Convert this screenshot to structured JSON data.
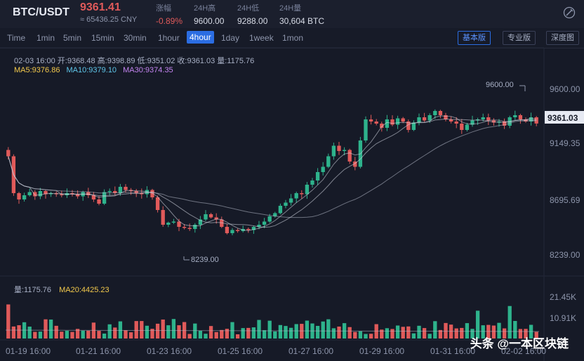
{
  "header": {
    "pair": "BTC/USDT",
    "price": "9361.41",
    "price_cny": "≈ 65436.25 CNY",
    "stats": [
      {
        "label": "涨幅",
        "value": "-0.89%"
      },
      {
        "label": "24H高",
        "value": "9600.00"
      },
      {
        "label": "24H低",
        "value": "9288.00"
      },
      {
        "label": "24H量",
        "value": "30,604 BTC"
      }
    ],
    "settings_icon": "wand-icon"
  },
  "timeframes": [
    "Time",
    "1min",
    "5min",
    "15min",
    "30min",
    "1hour",
    "4hour",
    "1day",
    "1week",
    "1mon"
  ],
  "active_timeframe": "4hour",
  "modes": [
    "基本版",
    "专业版",
    "深度图"
  ],
  "active_mode": "基本版",
  "ohlc": "02-03 16:00  开:9368.48 高:9398.89 低:9351.02 收:9361.03 量:1175.76",
  "ma_line": {
    "ma5": "MA5:9376.86",
    "ma10": "MA10:9379.10",
    "ma30": "MA30:9374.35"
  },
  "volume_line": {
    "vol": "量:1175.76",
    "ma20": "MA20:4425.23"
  },
  "price_axis": [
    "9600.00",
    "9149.35",
    "8695.69",
    "8239.00"
  ],
  "current_price_tag": "9361.03",
  "volume_axis": [
    "21.45K",
    "10.91K"
  ],
  "time_axis": [
    "01-19 16:00",
    "01-21 16:00",
    "01-23 16:00",
    "01-25 16:00",
    "01-27 16:00",
    "01-29 16:00",
    "01-31 16:00",
    "02-02 16:00"
  ],
  "annotations": {
    "high": "9600.00",
    "low": "8239.00"
  },
  "watermark": "头条 @一本区块链",
  "colors": {
    "up": "#2eb38c",
    "down": "#e05a5a",
    "ma5": "#f2c94c",
    "ma10": "#5ec5e8",
    "ma30": "#c384f0",
    "accent": "#2b6de2"
  },
  "chart_data": {
    "type": "candlestick",
    "ylim": [
      8000,
      9800
    ],
    "candle_closes": [
      9050,
      8700,
      8640,
      8680,
      8710,
      8670,
      8720,
      8690,
      8700,
      8690,
      8680,
      8700,
      8690,
      8670,
      8710,
      8680,
      8640,
      8600,
      8710,
      8720,
      8700,
      8760,
      8730,
      8720,
      8700,
      8690,
      8730,
      8660,
      8540,
      8400,
      8420,
      8430,
      8380,
      8370,
      8360,
      8400,
      8450,
      8500,
      8470,
      8450,
      8380,
      8320,
      8350,
      8340,
      8360,
      8350,
      8380,
      8400,
      8430,
      8480,
      8510,
      8580,
      8610,
      8650,
      8700,
      8690,
      8780,
      8820,
      8900,
      8950,
      9050,
      9150,
      9100,
      9110,
      9000,
      8950,
      9200,
      9400,
      9380,
      9360,
      9320,
      9400,
      9350,
      9410,
      9380,
      9300,
      9370,
      9420,
      9390,
      9440,
      9480,
      9440,
      9400,
      9380,
      9360,
      9300,
      9350,
      9390,
      9400,
      9420,
      9390,
      9370,
      9380,
      9340,
      9420,
      9440,
      9400,
      9380,
      9420,
      9361
    ]
  }
}
